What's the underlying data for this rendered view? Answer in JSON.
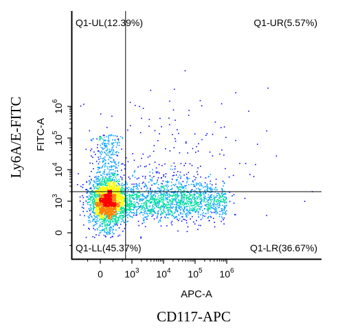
{
  "chart_data": {
    "type": "scatter",
    "xlabel": "APC-A",
    "ylabel": "FITC-A",
    "outer_xlabel": "CD117-APC",
    "outer_ylabel": "Ly6A/E-FITC",
    "x_ticks": [
      {
        "value": 0,
        "label": "0"
      },
      {
        "value": 1000,
        "label": "10",
        "exp": "3"
      },
      {
        "value": 10000,
        "label": "10",
        "exp": "4"
      },
      {
        "value": 100000,
        "label": "10",
        "exp": "5"
      },
      {
        "value": 1000000,
        "label": "10",
        "exp": "6"
      }
    ],
    "y_ticks": [
      {
        "value": 0,
        "label": "0"
      },
      {
        "value": 1000,
        "label": "10",
        "exp": "3"
      },
      {
        "value": 10000,
        "label": "10",
        "exp": "4"
      },
      {
        "value": 100000,
        "label": "10",
        "exp": "5"
      },
      {
        "value": 1000000,
        "label": "10",
        "exp": "6"
      }
    ],
    "gate": {
      "x": 800,
      "y": 2000
    },
    "quadrants": [
      {
        "name": "Q1-UL",
        "percent": "12.39%",
        "label": "Q1-UL(12.39%)",
        "position": "top-left"
      },
      {
        "name": "Q1-UR",
        "percent": "5.57%",
        "label": "Q1-UR(5.57%)",
        "position": "top-right"
      },
      {
        "name": "Q1-LL",
        "percent": "45.37%",
        "label": "Q1-LL(45.37%)",
        "position": "bottom-left"
      },
      {
        "name": "Q1-LR",
        "percent": "36.67%",
        "label": "Q1-LR(36.67%)",
        "position": "bottom-right"
      }
    ],
    "scale": "biexponential",
    "populations": [
      {
        "x": 200,
        "y": 1000,
        "share": 0.42
      },
      {
        "x": 2500,
        "y": 1000,
        "share": 0.3
      },
      {
        "x": 200,
        "y": 8000,
        "share": 0.14
      },
      {
        "x": 15000,
        "y": 1500,
        "share": 0.09
      },
      {
        "x": 10000,
        "y": 15000,
        "share": 0.05
      }
    ],
    "density_colormap": [
      "#0000ff",
      "#00a0ff",
      "#00e0a0",
      "#ffff00",
      "#ff8000",
      "#ff0000"
    ]
  }
}
